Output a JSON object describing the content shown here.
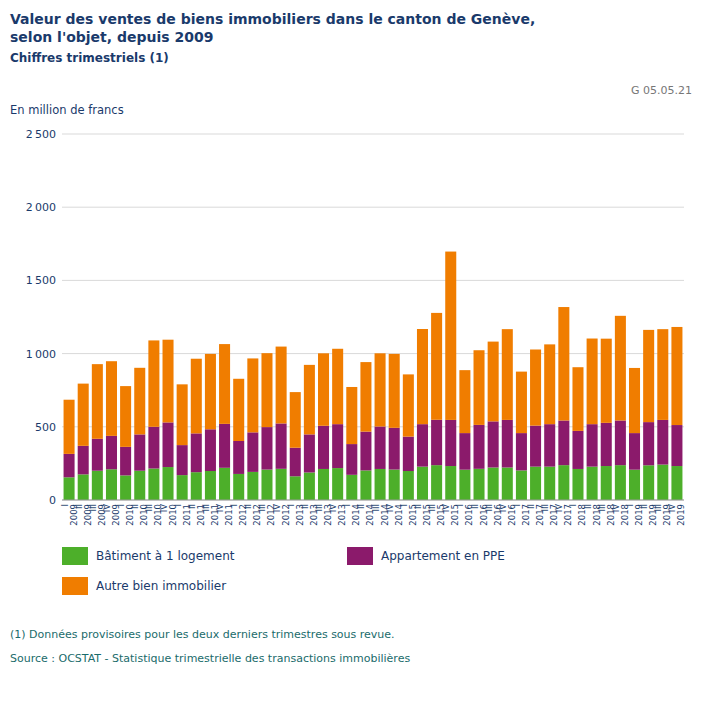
{
  "chart_data": {
    "type": "bar",
    "stacked": true,
    "title": "Valeur des ventes de biens immobiliers dans le canton de Genève,\nselon l'objet, depuis 2009",
    "subtitle": "Chiffres trimestriels (1)",
    "y_label": "En million de francs",
    "annotations": [
      "G 05.05.21",
      "(1) Données provisoires pour les deux derniers trimestres sous revue.",
      "Source : OCSTAT - Statistique trimestrielle des transactions immobilières"
    ],
    "categories": [
      "I\n2009",
      "II\n2009",
      "III\n2009",
      "IV\n2009",
      "I\n2010",
      "II\n2010",
      "III\n2010",
      "IV\n2010",
      "I\n2011",
      "II\n2011",
      "III\n2011",
      "IV\n2011",
      "I\n2012",
      "II\n2012",
      "III\n2012",
      "IV\n2012",
      "I\n2013",
      "II\n2013",
      "III\n2013",
      "IV\n2013",
      "I\n2014",
      "II\n2014",
      "III\n2014",
      "IV\n2014",
      "I\n2015",
      "II\n2015",
      "III\n2015",
      "IV\n2015",
      "I\n2016",
      "II\n2016",
      "III\n2016",
      "IV\n2016",
      "I\n2017",
      "II\n2017",
      "III\n2017",
      "IV\n2017",
      "I\n2018",
      "II\n2018",
      "III\n2018",
      "IV\n2018",
      "I\n2019",
      "II\n2019",
      "III\n2019",
      "IV\n2019"
    ],
    "series": [
      {
        "name": "Bâtiment à 1 logement",
        "color": "#4daf2a",
        "values": [
          155,
          175,
          200,
          210,
          168,
          200,
          215,
          225,
          170,
          190,
          198,
          220,
          178,
          192,
          208,
          213,
          162,
          188,
          212,
          218,
          172,
          202,
          212,
          208,
          198,
          228,
          238,
          232,
          207,
          213,
          222,
          222,
          202,
          228,
          228,
          238,
          212,
          228,
          232,
          238,
          207,
          237,
          242,
          232
        ]
      },
      {
        "name": "Appartement en PPE",
        "color": "#8b1a6b",
        "values": [
          160,
          195,
          218,
          228,
          195,
          248,
          285,
          305,
          205,
          265,
          285,
          300,
          225,
          270,
          290,
          310,
          195,
          260,
          295,
          300,
          210,
          265,
          290,
          285,
          235,
          290,
          310,
          315,
          250,
          300,
          315,
          325,
          255,
          280,
          290,
          305,
          260,
          290,
          295,
          305,
          250,
          295,
          305,
          280
        ]
      },
      {
        "name": "Autre bien immobilier",
        "color": "#f07d00",
        "values": [
          370,
          425,
          510,
          510,
          415,
          455,
          590,
          565,
          415,
          510,
          515,
          545,
          425,
          505,
          505,
          525,
          380,
          475,
          495,
          515,
          390,
          475,
          500,
          505,
          425,
          650,
          730,
          1150,
          430,
          510,
          545,
          620,
          420,
          520,
          545,
          775,
          435,
          585,
          575,
          715,
          445,
          630,
          620,
          670
        ]
      }
    ],
    "ylim": [
      0,
      2500
    ],
    "yticks": [
      0,
      500,
      {
        "value": 1000,
        "label": "1 000"
      },
      {
        "value": 1500,
        "label": "1 500"
      },
      {
        "value": 2000,
        "label": "2 000"
      },
      {
        "value": 2500,
        "label": "2 500"
      }
    ],
    "grid": true
  }
}
